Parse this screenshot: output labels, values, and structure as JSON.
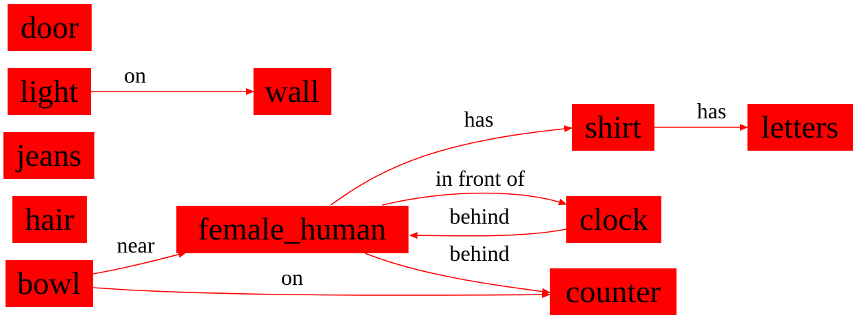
{
  "colors": {
    "node_fill": "#ff0000",
    "edge": "#ff0000",
    "text": "#000000",
    "background": "#ffffff"
  },
  "nodes": {
    "door": "door",
    "light": "light",
    "wall": "wall",
    "jeans": "jeans",
    "hair": "hair",
    "bowl": "bowl",
    "female_human": "female_human",
    "shirt": "shirt",
    "letters": "letters",
    "clock": "clock",
    "counter": "counter"
  },
  "edges": {
    "light_wall": {
      "from": "light",
      "to": "wall",
      "label": "on"
    },
    "female_shirt": {
      "from": "female_human",
      "to": "shirt",
      "label": "has"
    },
    "shirt_letters": {
      "from": "shirt",
      "to": "letters",
      "label": "has"
    },
    "female_clock": {
      "from": "female_human",
      "to": "clock",
      "label": "in front of"
    },
    "clock_female": {
      "from": "clock",
      "to": "female_human",
      "label": "behind"
    },
    "female_counter": {
      "from": "female_human",
      "to": "counter",
      "label": "behind"
    },
    "bowl_female": {
      "from": "bowl",
      "to": "female_human",
      "label": "near"
    },
    "bowl_counter": {
      "from": "bowl",
      "to": "counter",
      "label": "on"
    }
  }
}
